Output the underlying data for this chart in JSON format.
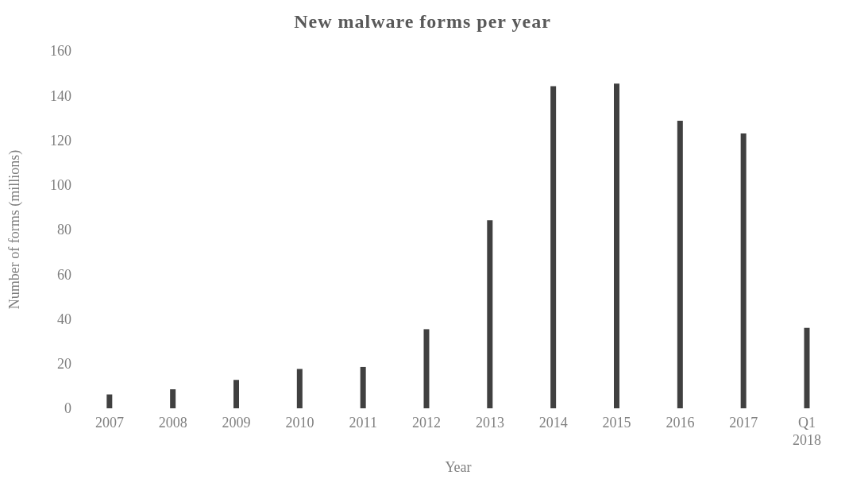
{
  "chart_data": {
    "type": "bar",
    "title": "New malware forms per year",
    "xlabel": "Year",
    "ylabel": "Number of forms (millions)",
    "categories": [
      "2007",
      "2008",
      "2009",
      "2010",
      "2011",
      "2012",
      "2013",
      "2014",
      "2015",
      "2016",
      "2017",
      "Q1 2018"
    ],
    "values": [
      5.5,
      7.8,
      12,
      16.9,
      17.8,
      34.7,
      83.5,
      143.5,
      144.6,
      128,
      122.3,
      35.3
    ],
    "color": "#404040",
    "ylim": [
      0,
      160
    ],
    "yticks": [
      0,
      20,
      40,
      60,
      80,
      100,
      120,
      140,
      160
    ],
    "grid": false,
    "legend": false
  }
}
